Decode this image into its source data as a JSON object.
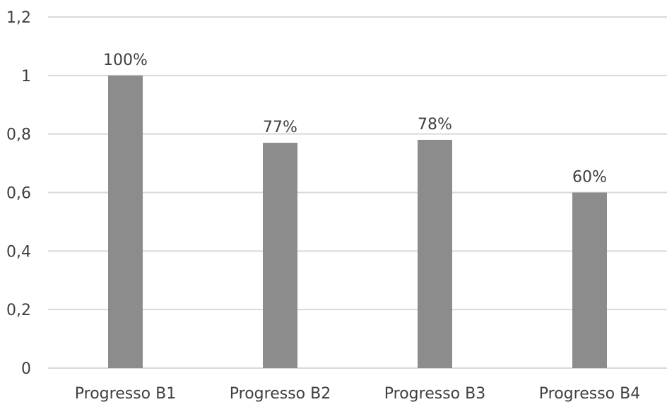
{
  "chart_data": {
    "type": "bar",
    "categories": [
      "Progresso B1",
      "Progresso B2",
      "Progresso B3",
      "Progresso B4"
    ],
    "values": [
      1.0,
      0.77,
      0.78,
      0.6
    ],
    "data_labels": [
      "100%",
      "77%",
      "78%",
      "60%"
    ],
    "ytick_labels": [
      "0",
      "0,2",
      "0,4",
      "0,6",
      "0,8",
      "1",
      "1,2"
    ],
    "ylim": [
      0,
      1.2
    ],
    "ystep": 0.2,
    "grid": true,
    "legend": "none",
    "bar_color": "#8c8c8c",
    "grid_color": "#d9d9d9",
    "text_color": "#404040"
  }
}
